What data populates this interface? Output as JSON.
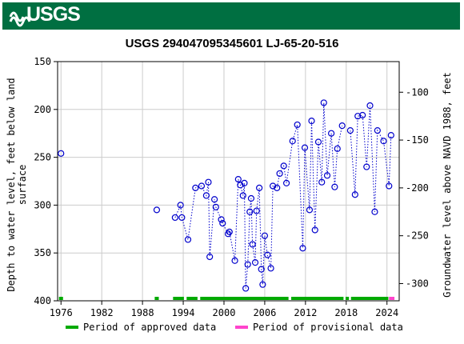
{
  "header": {
    "agency": "USGS",
    "brand_color": "#006f41"
  },
  "chart_data": {
    "type": "scatter",
    "title": "USGS 294047095345601 LJ-65-20-516",
    "ylabel_left": "Depth to water level, feet below land surface",
    "ylabel_right": "Groundwater level above NAVD 1988, feet",
    "xlim": [
      1975.5,
      2025.8
    ],
    "ylim_left": [
      400,
      150
    ],
    "ylim_right": [
      -318,
      -68
    ],
    "x_ticks": [
      "1976",
      "1982",
      "1988",
      "1994",
      "2000",
      "2006",
      "2012",
      "2018",
      "2024"
    ],
    "y_ticks_left": [
      "150",
      "200",
      "250",
      "300",
      "350",
      "400"
    ],
    "y_ticks_right": [
      "-100",
      "-150",
      "-200",
      "-250",
      "-300"
    ],
    "grid": true,
    "series": [
      {
        "marker": "open-circle",
        "color": "#0000cc",
        "line_style": "dotted",
        "points": [
          {
            "x": 1976.0,
            "y": 246
          },
          {
            "x": 1990.1,
            "y": 305,
            "gap_before": true
          },
          {
            "x": 1992.8,
            "y": 313,
            "gap_before": true
          },
          {
            "x": 1993.6,
            "y": 300
          },
          {
            "x": 1993.8,
            "y": 313
          },
          {
            "x": 1994.7,
            "y": 336
          },
          {
            "x": 1995.8,
            "y": 282
          },
          {
            "x": 1996.7,
            "y": 280
          },
          {
            "x": 1997.4,
            "y": 290
          },
          {
            "x": 1997.7,
            "y": 276
          },
          {
            "x": 1997.9,
            "y": 354
          },
          {
            "x": 1998.6,
            "y": 294
          },
          {
            "x": 1998.8,
            "y": 302
          },
          {
            "x": 1999.6,
            "y": 315
          },
          {
            "x": 1999.8,
            "y": 319
          },
          {
            "x": 2000.6,
            "y": 330
          },
          {
            "x": 2000.8,
            "y": 328
          },
          {
            "x": 2001.6,
            "y": 358
          },
          {
            "x": 2002.1,
            "y": 273
          },
          {
            "x": 2002.4,
            "y": 279
          },
          {
            "x": 2002.8,
            "y": 290
          },
          {
            "x": 2003.0,
            "y": 277
          },
          {
            "x": 2003.2,
            "y": 387
          },
          {
            "x": 2003.5,
            "y": 362
          },
          {
            "x": 2003.8,
            "y": 307
          },
          {
            "x": 2004.0,
            "y": 293
          },
          {
            "x": 2004.2,
            "y": 341
          },
          {
            "x": 2004.6,
            "y": 360
          },
          {
            "x": 2004.8,
            "y": 306
          },
          {
            "x": 2005.2,
            "y": 282
          },
          {
            "x": 2005.5,
            "y": 367
          },
          {
            "x": 2005.7,
            "y": 383
          },
          {
            "x": 2006.0,
            "y": 332
          },
          {
            "x": 2006.4,
            "y": 352
          },
          {
            "x": 2006.9,
            "y": 366
          },
          {
            "x": 2007.2,
            "y": 280
          },
          {
            "x": 2007.8,
            "y": 282
          },
          {
            "x": 2008.2,
            "y": 267
          },
          {
            "x": 2008.8,
            "y": 259
          },
          {
            "x": 2009.2,
            "y": 277
          },
          {
            "x": 2010.1,
            "y": 233
          },
          {
            "x": 2010.8,
            "y": 216
          },
          {
            "x": 2011.6,
            "y": 345
          },
          {
            "x": 2011.9,
            "y": 240
          },
          {
            "x": 2012.6,
            "y": 305
          },
          {
            "x": 2012.9,
            "y": 212
          },
          {
            "x": 2013.4,
            "y": 326
          },
          {
            "x": 2013.9,
            "y": 234
          },
          {
            "x": 2014.4,
            "y": 276
          },
          {
            "x": 2014.7,
            "y": 193
          },
          {
            "x": 2015.2,
            "y": 269
          },
          {
            "x": 2015.8,
            "y": 225
          },
          {
            "x": 2016.3,
            "y": 281
          },
          {
            "x": 2016.7,
            "y": 241
          },
          {
            "x": 2017.4,
            "y": 217
          },
          {
            "x": 2018.6,
            "y": 222,
            "gap_before": true
          },
          {
            "x": 2019.3,
            "y": 289
          },
          {
            "x": 2019.7,
            "y": 207
          },
          {
            "x": 2020.4,
            "y": 206
          },
          {
            "x": 2021.0,
            "y": 260
          },
          {
            "x": 2021.5,
            "y": 196
          },
          {
            "x": 2022.2,
            "y": 307
          },
          {
            "x": 2022.6,
            "y": 222
          },
          {
            "x": 2023.5,
            "y": 233
          },
          {
            "x": 2024.3,
            "y": 280
          },
          {
            "x": 2024.6,
            "y": 227
          }
        ]
      }
    ],
    "approval_periods": [
      {
        "status": "approved",
        "start": 1975.7,
        "end": 1976.3
      },
      {
        "status": "approved",
        "start": 1989.8,
        "end": 1990.4
      },
      {
        "status": "approved",
        "start": 1992.5,
        "end": 1994.1
      },
      {
        "status": "approved",
        "start": 1994.5,
        "end": 1996.1
      },
      {
        "status": "approved",
        "start": 1996.5,
        "end": 2009.5
      },
      {
        "status": "approved",
        "start": 2009.9,
        "end": 2017.6
      },
      {
        "status": "approved",
        "start": 2017.9,
        "end": 2018.4
      },
      {
        "status": "approved",
        "start": 2018.7,
        "end": 2024.2
      },
      {
        "status": "provisional",
        "start": 2024.3,
        "end": 2025.1
      }
    ],
    "legend": {
      "approved_label": "Period of approved data",
      "provisional_label": "Period of provisional data",
      "approved_color": "#00aa00",
      "provisional_color": "#ff44cc"
    }
  }
}
